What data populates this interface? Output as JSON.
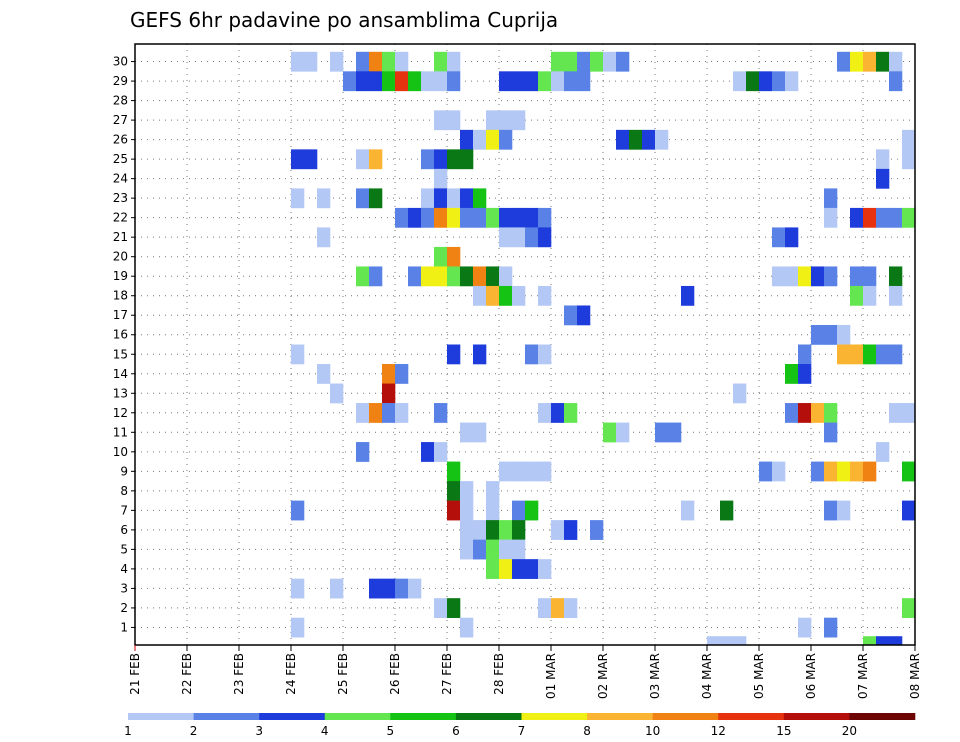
{
  "chart_data": {
    "type": "heatmap",
    "title": "GEFS 6hr padavine po ansamblima Cuprija",
    "xlabel": "",
    "ylabel": "",
    "x_range": [
      0,
      60
    ],
    "steps_per_day": 4,
    "y_ticks": [
      "1",
      "2",
      "3",
      "4",
      "5",
      "6",
      "7",
      "8",
      "9",
      "10",
      "11",
      "12",
      "13",
      "14",
      "15",
      "16",
      "17",
      "18",
      "19",
      "20",
      "21",
      "22",
      "23",
      "24",
      "25",
      "26",
      "27",
      "28",
      "29",
      "30"
    ],
    "x_ticks": [
      {
        "label": "21 FEB",
        "at": 0
      },
      {
        "label": "22 FEB",
        "at": 4
      },
      {
        "label": "23 FEB",
        "at": 8
      },
      {
        "label": "24 FEB",
        "at": 12
      },
      {
        "label": "25 FEB",
        "at": 16
      },
      {
        "label": "26 FEB",
        "at": 20
      },
      {
        "label": "27 FEB",
        "at": 24
      },
      {
        "label": "28 FEB",
        "at": 28
      },
      {
        "label": "01 MAR",
        "at": 32
      },
      {
        "label": "02 MAR",
        "at": 36
      },
      {
        "label": "03 MAR",
        "at": 40
      },
      {
        "label": "04 MAR",
        "at": 44
      },
      {
        "label": "05 MAR",
        "at": 48
      },
      {
        "label": "06 MAR",
        "at": 52
      },
      {
        "label": "07 MAR",
        "at": 56
      },
      {
        "label": "08 MAR",
        "at": 60
      }
    ],
    "grid": true,
    "colorbar": {
      "levels": [
        "1",
        "2",
        "3",
        "4",
        "5",
        "6",
        "7",
        "8",
        "10",
        "12",
        "15",
        "20"
      ],
      "colors": [
        "#b4c8f5",
        "#5a82e6",
        "#1e3cdc",
        "#64e650",
        "#14c314",
        "#0a7814",
        "#f0f014",
        "#fab432",
        "#f08214",
        "#e6320f",
        "#b40f0a",
        "#6e0505"
      ]
    },
    "cells": [
      [
        30,
        12,
        1
      ],
      [
        30,
        13,
        1
      ],
      [
        30,
        15,
        1
      ],
      [
        30,
        17,
        2
      ],
      [
        30,
        18,
        9
      ],
      [
        30,
        19,
        4
      ],
      [
        30,
        20,
        1
      ],
      [
        30,
        23,
        4
      ],
      [
        30,
        24,
        1
      ],
      [
        30,
        32,
        4
      ],
      [
        30,
        33,
        4
      ],
      [
        30,
        34,
        2
      ],
      [
        30,
        35,
        4
      ],
      [
        30,
        36,
        1
      ],
      [
        30,
        37,
        2
      ],
      [
        30,
        54,
        2
      ],
      [
        30,
        55,
        7
      ],
      [
        30,
        56,
        8
      ],
      [
        30,
        57,
        6
      ],
      [
        30,
        58,
        1
      ],
      [
        29,
        16,
        2
      ],
      [
        29,
        17,
        3
      ],
      [
        29,
        18,
        3
      ],
      [
        29,
        19,
        5
      ],
      [
        29,
        20,
        10
      ],
      [
        29,
        21,
        5
      ],
      [
        29,
        22,
        1
      ],
      [
        29,
        23,
        1
      ],
      [
        29,
        24,
        2
      ],
      [
        29,
        28,
        3
      ],
      [
        29,
        29,
        3
      ],
      [
        29,
        30,
        3
      ],
      [
        29,
        31,
        4
      ],
      [
        29,
        32,
        1
      ],
      [
        29,
        33,
        2
      ],
      [
        29,
        34,
        2
      ],
      [
        29,
        46,
        1
      ],
      [
        29,
        47,
        6
      ],
      [
        29,
        48,
        3
      ],
      [
        29,
        49,
        2
      ],
      [
        29,
        50,
        1
      ],
      [
        29,
        58,
        2
      ],
      [
        27,
        23,
        1
      ],
      [
        27,
        24,
        1
      ],
      [
        27,
        27,
        1
      ],
      [
        27,
        28,
        1
      ],
      [
        27,
        29,
        1
      ],
      [
        26,
        25,
        3
      ],
      [
        26,
        26,
        1
      ],
      [
        26,
        27,
        7
      ],
      [
        26,
        28,
        2
      ],
      [
        26,
        37,
        3
      ],
      [
        26,
        38,
        6
      ],
      [
        26,
        39,
        3
      ],
      [
        26,
        40,
        1
      ],
      [
        26,
        59,
        1
      ],
      [
        25,
        12,
        3
      ],
      [
        25,
        13,
        3
      ],
      [
        25,
        17,
        1
      ],
      [
        25,
        18,
        8
      ],
      [
        25,
        22,
        2
      ],
      [
        25,
        23,
        3
      ],
      [
        25,
        24,
        6
      ],
      [
        25,
        25,
        6
      ],
      [
        25,
        57,
        1
      ],
      [
        25,
        59,
        1
      ],
      [
        24,
        23,
        1
      ],
      [
        24,
        57,
        3
      ],
      [
        23,
        12,
        1
      ],
      [
        23,
        14,
        1
      ],
      [
        23,
        17,
        2
      ],
      [
        23,
        18,
        6
      ],
      [
        23,
        22,
        1
      ],
      [
        23,
        23,
        3
      ],
      [
        23,
        24,
        1
      ],
      [
        23,
        25,
        3
      ],
      [
        23,
        26,
        5
      ],
      [
        23,
        53,
        2
      ],
      [
        22,
        20,
        2
      ],
      [
        22,
        21,
        3
      ],
      [
        22,
        22,
        2
      ],
      [
        22,
        23,
        9
      ],
      [
        22,
        24,
        7
      ],
      [
        22,
        25,
        2
      ],
      [
        22,
        26,
        2
      ],
      [
        22,
        27,
        4
      ],
      [
        22,
        28,
        3
      ],
      [
        22,
        29,
        3
      ],
      [
        22,
        30,
        3
      ],
      [
        22,
        31,
        2
      ],
      [
        22,
        53,
        1
      ],
      [
        22,
        55,
        3
      ],
      [
        22,
        56,
        10
      ],
      [
        22,
        57,
        2
      ],
      [
        22,
        58,
        2
      ],
      [
        22,
        60,
        4
      ],
      [
        21,
        14,
        1
      ],
      [
        21,
        28,
        1
      ],
      [
        21,
        29,
        1
      ],
      [
        21,
        30,
        2
      ],
      [
        21,
        31,
        3
      ],
      [
        21,
        49,
        2
      ],
      [
        21,
        50,
        3
      ],
      [
        20,
        23,
        4
      ],
      [
        20,
        24,
        9
      ],
      [
        19,
        17,
        4
      ],
      [
        19,
        18,
        2
      ],
      [
        19,
        21,
        2
      ],
      [
        19,
        22,
        7
      ],
      [
        19,
        23,
        7
      ],
      [
        19,
        24,
        4
      ],
      [
        19,
        25,
        6
      ],
      [
        19,
        26,
        9
      ],
      [
        19,
        27,
        6
      ],
      [
        19,
        28,
        1
      ],
      [
        19,
        49,
        1
      ],
      [
        19,
        50,
        1
      ],
      [
        19,
        51,
        7
      ],
      [
        19,
        52,
        3
      ],
      [
        19,
        53,
        2
      ],
      [
        19,
        55,
        2
      ],
      [
        19,
        56,
        2
      ],
      [
        19,
        58,
        6
      ],
      [
        18,
        26,
        1
      ],
      [
        18,
        27,
        8
      ],
      [
        18,
        28,
        5
      ],
      [
        18,
        29,
        1
      ],
      [
        18,
        31,
        1
      ],
      [
        18,
        42,
        3
      ],
      [
        18,
        55,
        4
      ],
      [
        18,
        56,
        1
      ],
      [
        18,
        58,
        1
      ],
      [
        17,
        33,
        2
      ],
      [
        17,
        34,
        3
      ],
      [
        16,
        52,
        2
      ],
      [
        16,
        53,
        2
      ],
      [
        16,
        54,
        1
      ],
      [
        15,
        12,
        1
      ],
      [
        15,
        24,
        3
      ],
      [
        15,
        26,
        3
      ],
      [
        15,
        30,
        2
      ],
      [
        15,
        31,
        1
      ],
      [
        15,
        51,
        2
      ],
      [
        15,
        54,
        8
      ],
      [
        15,
        55,
        8
      ],
      [
        15,
        56,
        5
      ],
      [
        15,
        57,
        2
      ],
      [
        15,
        58,
        2
      ],
      [
        14,
        14,
        1
      ],
      [
        14,
        19,
        9
      ],
      [
        14,
        20,
        2
      ],
      [
        14,
        50,
        5
      ],
      [
        14,
        51,
        3
      ],
      [
        13,
        15,
        1
      ],
      [
        13,
        19,
        11
      ],
      [
        13,
        46,
        1
      ],
      [
        12,
        17,
        1
      ],
      [
        12,
        18,
        9
      ],
      [
        12,
        19,
        2
      ],
      [
        12,
        20,
        1
      ],
      [
        12,
        23,
        2
      ],
      [
        12,
        31,
        1
      ],
      [
        12,
        32,
        3
      ],
      [
        12,
        33,
        4
      ],
      [
        12,
        50,
        2
      ],
      [
        12,
        51,
        11
      ],
      [
        12,
        52,
        8
      ],
      [
        12,
        53,
        4
      ],
      [
        12,
        58,
        1
      ],
      [
        12,
        59,
        1
      ],
      [
        11,
        25,
        1
      ],
      [
        11,
        26,
        1
      ],
      [
        11,
        36,
        4
      ],
      [
        11,
        37,
        1
      ],
      [
        11,
        40,
        2
      ],
      [
        11,
        41,
        2
      ],
      [
        11,
        53,
        2
      ],
      [
        10,
        17,
        2
      ],
      [
        10,
        22,
        3
      ],
      [
        10,
        23,
        1
      ],
      [
        10,
        57,
        1
      ],
      [
        9,
        24,
        5
      ],
      [
        9,
        28,
        1
      ],
      [
        9,
        29,
        1
      ],
      [
        9,
        30,
        1
      ],
      [
        9,
        31,
        1
      ],
      [
        9,
        48,
        2
      ],
      [
        9,
        49,
        1
      ],
      [
        9,
        52,
        2
      ],
      [
        9,
        53,
        8
      ],
      [
        9,
        54,
        7
      ],
      [
        9,
        55,
        8
      ],
      [
        9,
        56,
        9
      ],
      [
        9,
        60,
        5
      ],
      [
        8,
        24,
        6
      ],
      [
        8,
        25,
        1
      ],
      [
        8,
        27,
        1
      ],
      [
        7,
        12,
        2
      ],
      [
        7,
        24,
        11
      ],
      [
        7,
        25,
        1
      ],
      [
        7,
        27,
        1
      ],
      [
        7,
        29,
        2
      ],
      [
        7,
        30,
        5
      ],
      [
        7,
        42,
        1
      ],
      [
        7,
        45,
        6
      ],
      [
        7,
        53,
        2
      ],
      [
        7,
        54,
        1
      ],
      [
        7,
        59,
        3
      ],
      [
        6,
        25,
        1
      ],
      [
        6,
        26,
        1
      ],
      [
        6,
        27,
        6
      ],
      [
        6,
        28,
        4
      ],
      [
        6,
        29,
        6
      ],
      [
        6,
        32,
        1
      ],
      [
        6,
        33,
        3
      ],
      [
        6,
        35,
        2
      ],
      [
        5,
        25,
        1
      ],
      [
        5,
        26,
        2
      ],
      [
        5,
        27,
        4
      ],
      [
        5,
        28,
        1
      ],
      [
        5,
        29,
        1
      ],
      [
        4,
        27,
        4
      ],
      [
        4,
        28,
        7
      ],
      [
        4,
        29,
        3
      ],
      [
        4,
        30,
        3
      ],
      [
        4,
        31,
        1
      ],
      [
        3,
        12,
        1
      ],
      [
        3,
        15,
        1
      ],
      [
        3,
        18,
        3
      ],
      [
        3,
        19,
        3
      ],
      [
        3,
        20,
        2
      ],
      [
        3,
        21,
        1
      ],
      [
        2,
        23,
        1
      ],
      [
        2,
        24,
        6
      ],
      [
        2,
        31,
        1
      ],
      [
        2,
        32,
        8
      ],
      [
        2,
        33,
        1
      ],
      [
        2,
        60,
        4
      ],
      [
        1,
        12,
        1
      ],
      [
        1,
        25,
        1
      ],
      [
        1,
        51,
        1
      ],
      [
        1,
        53,
        2
      ]
    ],
    "bottom_strip": [
      [
        44,
        1
      ],
      [
        45,
        1
      ],
      [
        46,
        1
      ],
      [
        56,
        4
      ],
      [
        57,
        3
      ],
      [
        58,
        3
      ]
    ]
  }
}
